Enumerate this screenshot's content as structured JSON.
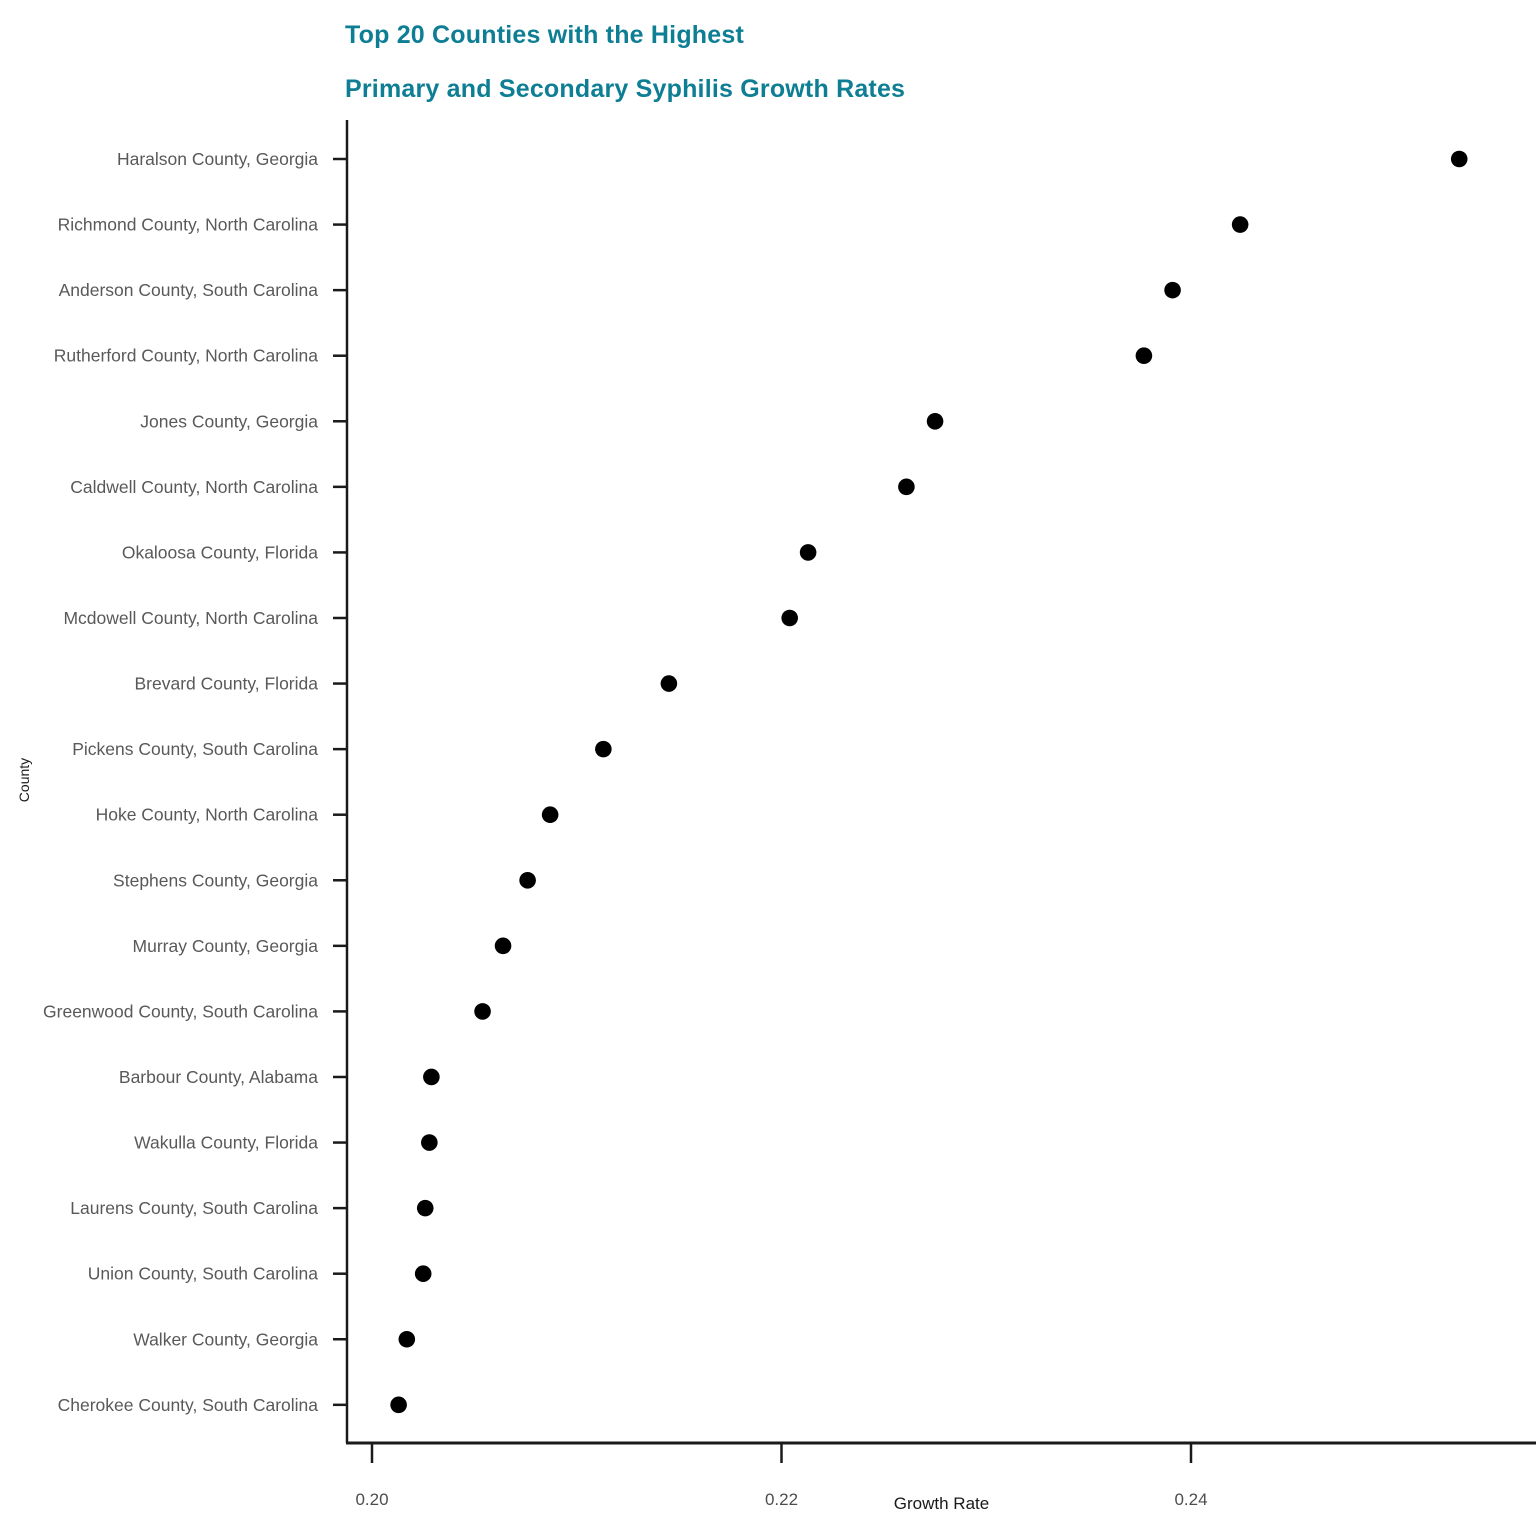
{
  "chart_data": {
    "type": "scatter",
    "title_line1": "Top 20 Counties with the Highest",
    "title_line2": "Primary and Secondary Syphilis Growth Rates",
    "title_color": "#0d7e93",
    "xlabel": "Growth Rate",
    "ylabel": "County",
    "categories": [
      "Haralson County, Georgia",
      "Richmond County, North Carolina",
      "Anderson County, South Carolina",
      "Rutherford County, North Carolina",
      "Jones County, Georgia",
      "Caldwell County, North Carolina",
      "Okaloosa County, Florida",
      "Mcdowell County, North Carolina",
      "Brevard County, Florida",
      "Pickens County, South Carolina",
      "Hoke County, North Carolina",
      "Stephens County, Georgia",
      "Murray County, Georgia",
      "Greenwood County, South Carolina",
      "Barbour County, Alabama",
      "Wakulla County, Florida",
      "Laurens County, South Carolina",
      "Union County, South Carolina",
      "Walker County, Georgia",
      "Cherokee County, South Carolina"
    ],
    "values": [
      0.2531,
      0.2424,
      0.2391,
      0.2377,
      0.2275,
      0.2261,
      0.2213,
      0.2204,
      0.2145,
      0.2113,
      0.2087,
      0.2076,
      0.2064,
      0.2054,
      0.2029,
      0.2028,
      0.2026,
      0.2025,
      0.2017,
      0.2013
    ],
    "x_ticks": [
      0.2,
      0.22,
      0.24
    ],
    "x_tick_labels": [
      "0.20",
      "0.22",
      "0.24"
    ],
    "xlim": [
      0.1988,
      0.2569
    ],
    "grid": false,
    "legend_position": "none",
    "dot_color": "#000000",
    "category_label_color": "#595959",
    "tick_label_color": "#4d4d4d",
    "axis_color": "#1a1a1a"
  }
}
